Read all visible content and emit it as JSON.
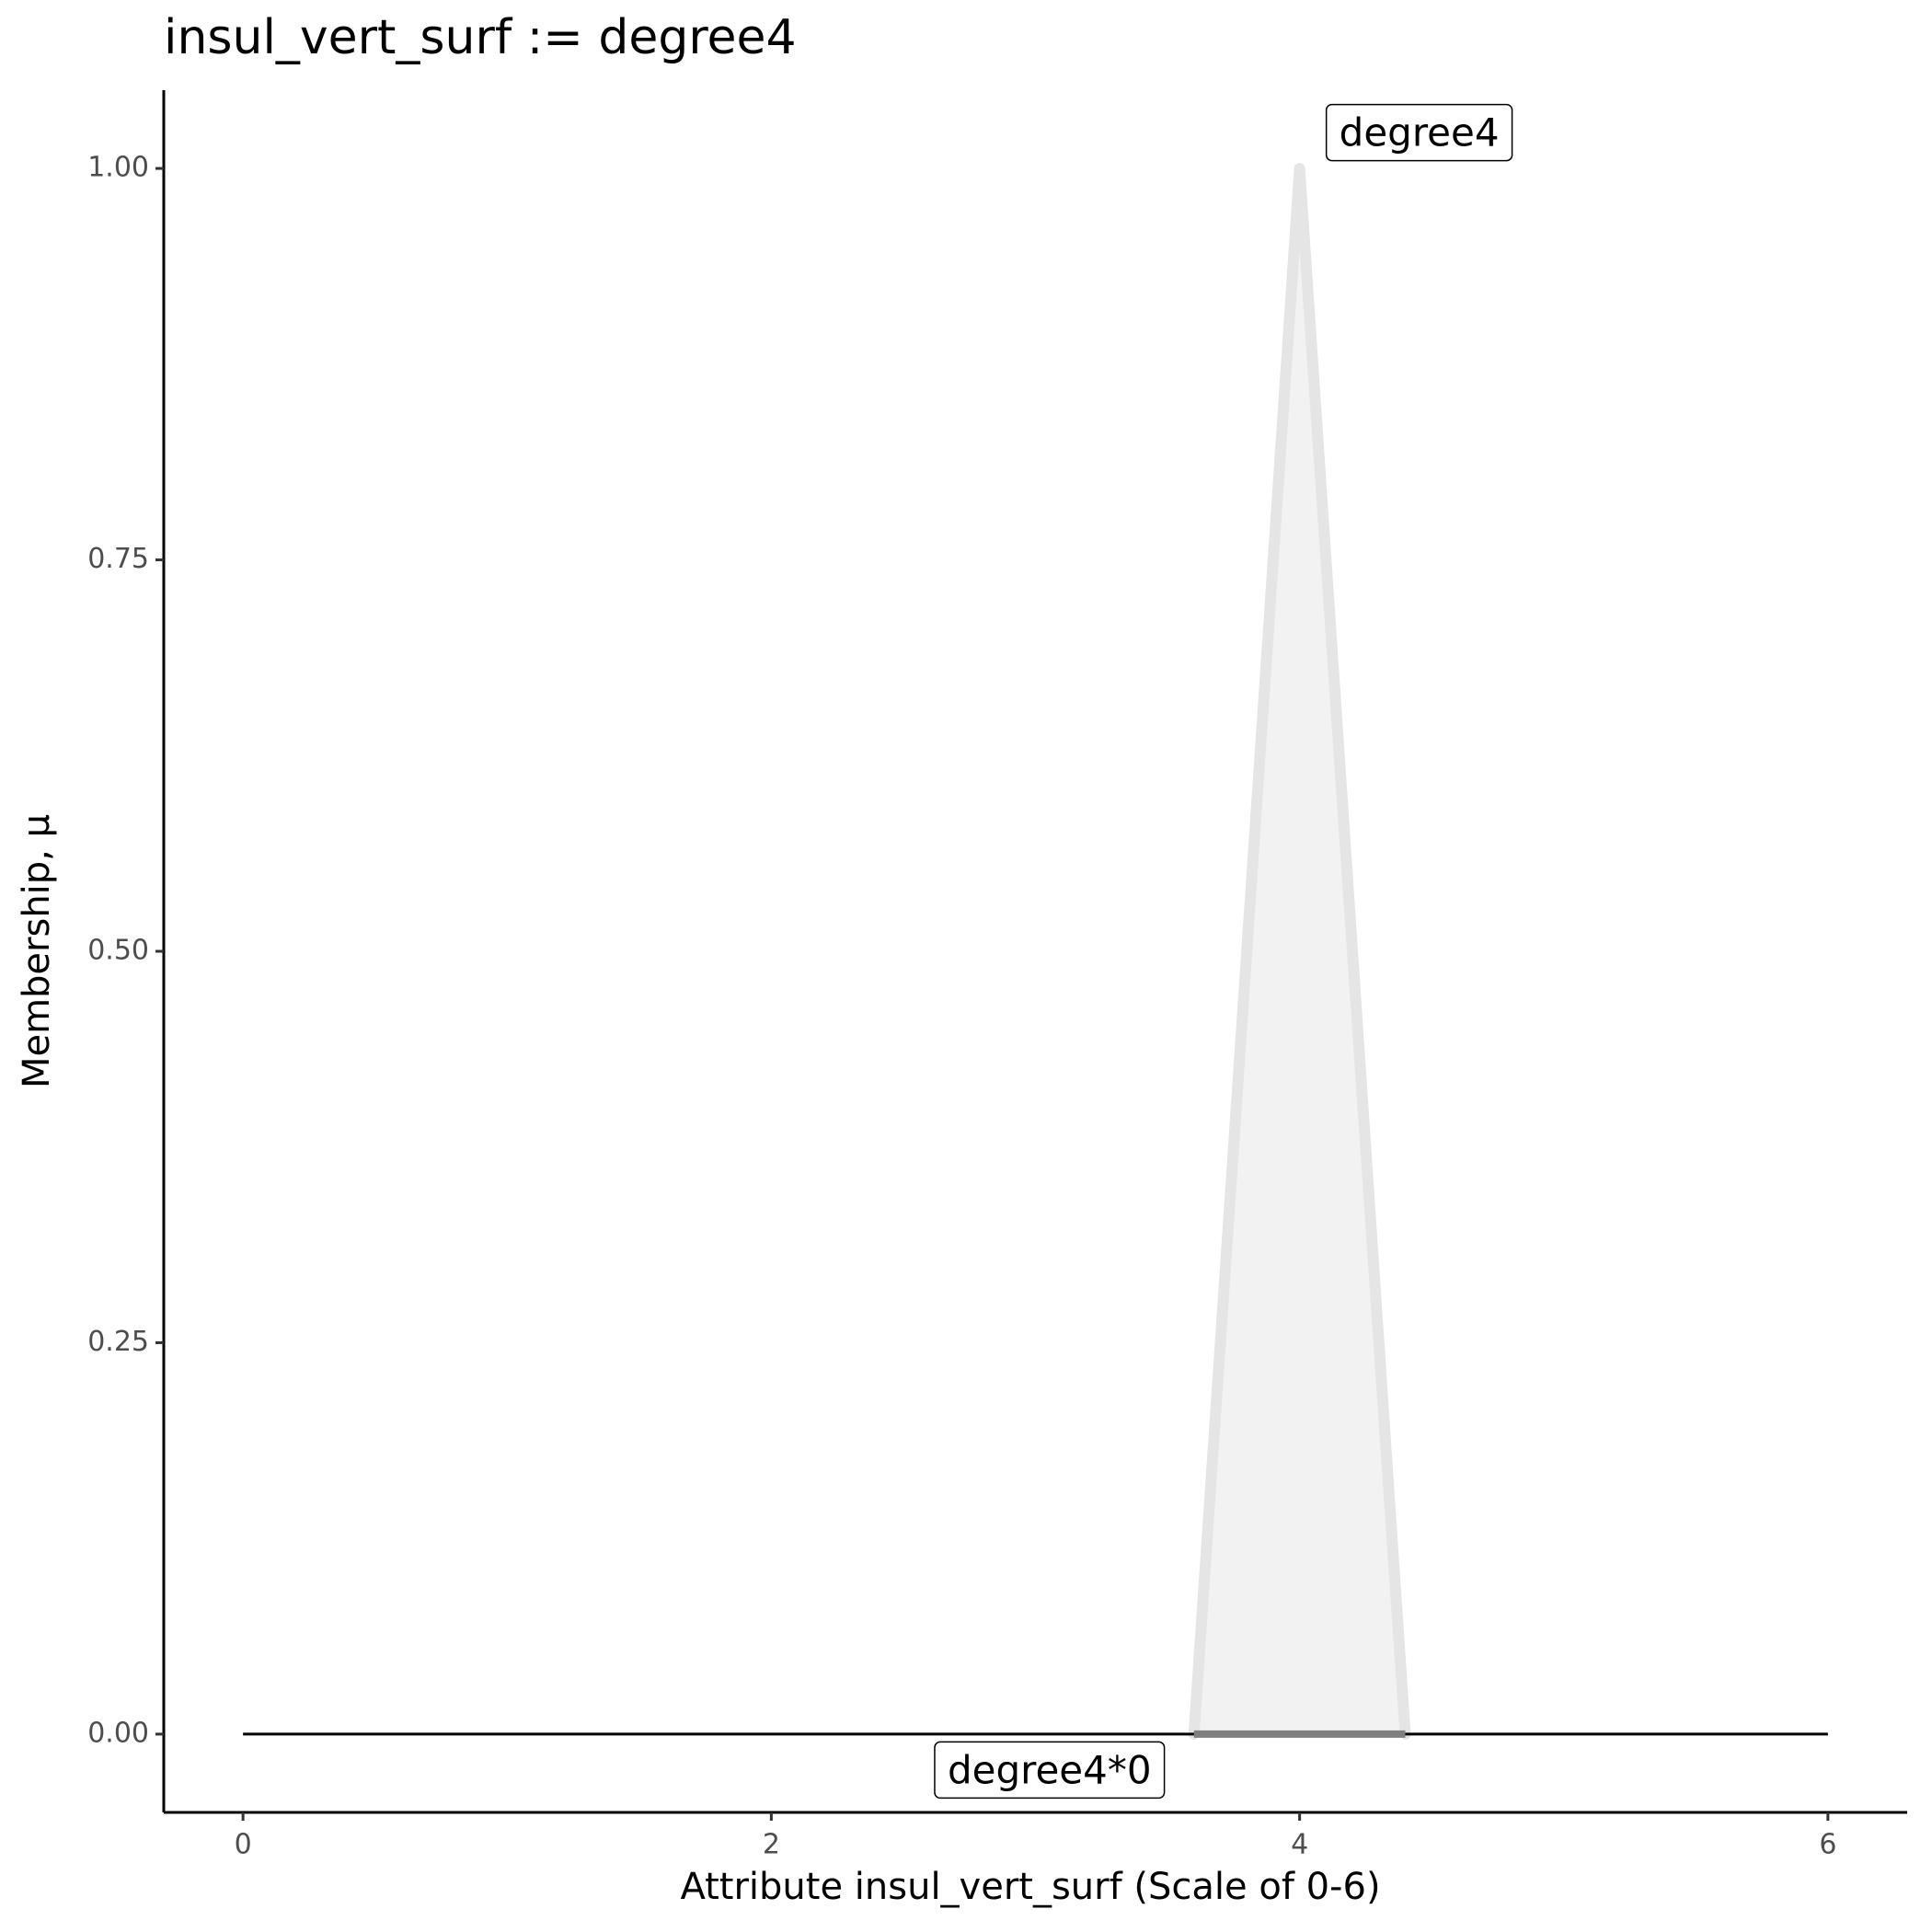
{
  "chart_data": {
    "type": "line",
    "title": "insul_vert_surf := degree4",
    "x_label": "Attribute insul_vert_surf (Scale of 0-6)",
    "y_label": "Membership, μ",
    "series": [
      {
        "name": "degree4",
        "x": [
          3.6,
          4,
          4.4
        ],
        "values": [
          0,
          1,
          0
        ],
        "color": "#e5e5e5",
        "fill": "#f2f2f2"
      },
      {
        "x": [
          0,
          6
        ],
        "values": [
          0,
          0
        ],
        "color": "#000000"
      },
      {
        "name": "degree4*0",
        "x": [
          3.6,
          4.4
        ],
        "values": [
          0,
          0
        ],
        "color": "#7f7f7f"
      }
    ],
    "xlim": [
      -0.3,
      6.3
    ],
    "ylim": [
      -0.05,
      1.05
    ],
    "xticks": [
      0,
      2,
      4,
      6
    ],
    "yticks": [
      {
        "value": 0,
        "label": "0.00"
      },
      {
        "value": 0.25,
        "label": "0.25"
      },
      {
        "value": 0.5,
        "label": "0.50"
      },
      {
        "value": 0.75,
        "label": "0.75"
      },
      {
        "value": 1,
        "label": "1.00"
      }
    ],
    "grid": false
  }
}
